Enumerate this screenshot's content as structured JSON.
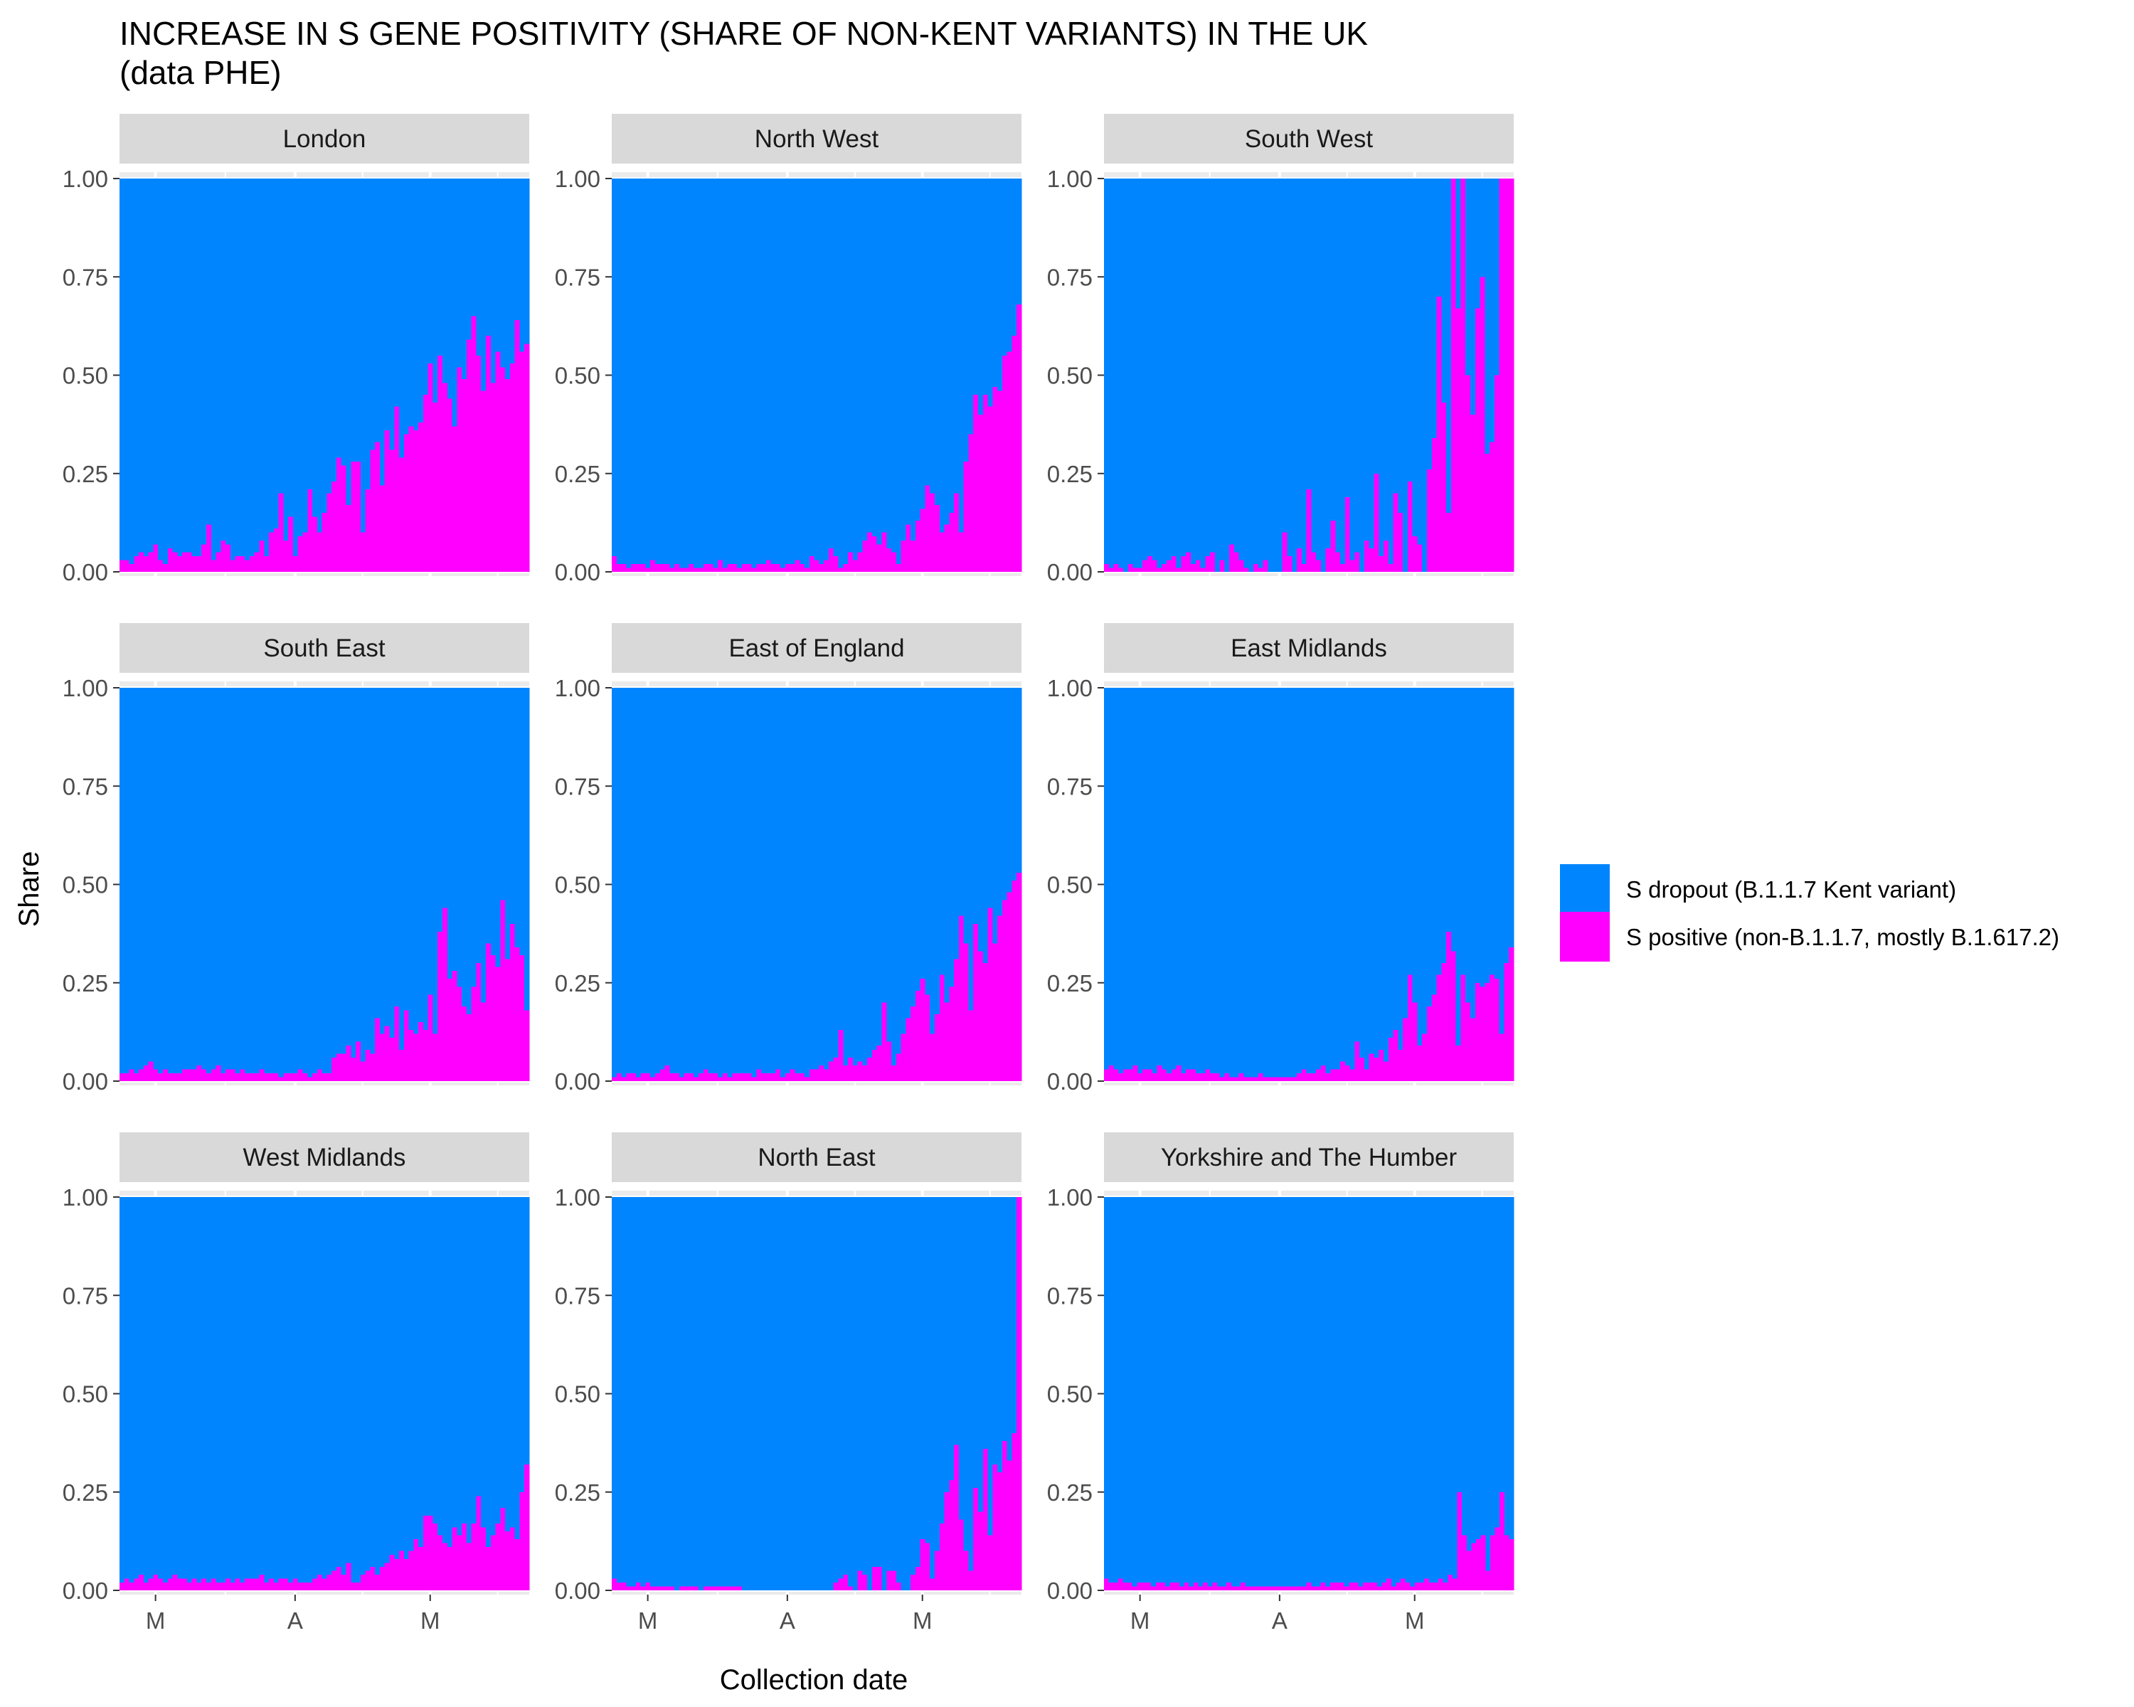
{
  "chart_data": {
    "type": "bar",
    "stacked": true,
    "facet": "wrap",
    "title": "INCREASE IN S GENE POSITIVITY (SHARE OF NON-KENT VARIANTS) IN THE UK",
    "subtitle": "(data PHE)",
    "xlabel": "Collection date",
    "ylabel": "Share",
    "ylim": [
      0,
      1
    ],
    "y_ticks": [
      "0.00",
      "0.25",
      "0.50",
      "0.75",
      "1.00"
    ],
    "x_tick_labels": [
      "M",
      "A",
      "M"
    ],
    "x_tick_dates": [
      "2021-03-01",
      "2021-04-01",
      "2021-05-01"
    ],
    "x_range": [
      "2021-02-21",
      "2021-05-23"
    ],
    "grid": true,
    "legend_position": "right",
    "legend": [
      {
        "label": "S dropout (B.1.1.7 Kent variant)",
        "color": "#0085FF"
      },
      {
        "label": "S positive (non-B.1.1.7, mostly B.1.617.2)",
        "color": "#FF00FF"
      }
    ],
    "panels": [
      {
        "name": "London",
        "s_positive_share": [
          0.03,
          0.03,
          0.02,
          0.04,
          0.05,
          0.04,
          0.05,
          0.07,
          0.03,
          0.02,
          0.06,
          0.05,
          0.04,
          0.05,
          0.05,
          0.04,
          0.04,
          0.07,
          0.12,
          0.03,
          0.05,
          0.08,
          0.07,
          0.03,
          0.04,
          0.04,
          0.03,
          0.04,
          0.05,
          0.08,
          0.04,
          0.1,
          0.11,
          0.2,
          0.08,
          0.14,
          0.04,
          0.09,
          0.1,
          0.21,
          0.14,
          0.1,
          0.15,
          0.2,
          0.23,
          0.29,
          0.27,
          0.17,
          0.28,
          0.28,
          0.1,
          0.21,
          0.31,
          0.33,
          0.22,
          0.36,
          0.31,
          0.42,
          0.29,
          0.35,
          0.37,
          0.36,
          0.38,
          0.45,
          0.53,
          0.43,
          0.55,
          0.48,
          0.44,
          0.37,
          0.52,
          0.49,
          0.59,
          0.65,
          0.55,
          0.46,
          0.6,
          0.48,
          0.56,
          0.52,
          0.49,
          0.53,
          0.64,
          0.56,
          0.58
        ]
      },
      {
        "name": "North West",
        "s_positive_share": [
          0.04,
          0.02,
          0.02,
          0.01,
          0.02,
          0.02,
          0.02,
          0.01,
          0.03,
          0.02,
          0.02,
          0.02,
          0.01,
          0.02,
          0.01,
          0.01,
          0.02,
          0.01,
          0.01,
          0.02,
          0.02,
          0.01,
          0.03,
          0.01,
          0.02,
          0.02,
          0.01,
          0.02,
          0.02,
          0.01,
          0.02,
          0.02,
          0.03,
          0.02,
          0.02,
          0.01,
          0.02,
          0.02,
          0.03,
          0.02,
          0.01,
          0.04,
          0.03,
          0.02,
          0.03,
          0.06,
          0.04,
          0.01,
          0.02,
          0.05,
          0.03,
          0.05,
          0.08,
          0.1,
          0.09,
          0.07,
          0.1,
          0.06,
          0.05,
          0.02,
          0.08,
          0.12,
          0.08,
          0.13,
          0.16,
          0.22,
          0.2,
          0.17,
          0.1,
          0.12,
          0.15,
          0.2,
          0.1,
          0.28,
          0.35,
          0.45,
          0.4,
          0.45,
          0.42,
          0.47,
          0.46,
          0.55,
          0.56,
          0.6,
          0.68
        ]
      },
      {
        "name": "South West",
        "s_positive_share": [
          0.02,
          0.01,
          0.02,
          0.01,
          0.0,
          0.02,
          0.01,
          0.01,
          0.03,
          0.04,
          0.03,
          0.01,
          0.02,
          0.03,
          0.04,
          0.01,
          0.04,
          0.05,
          0.02,
          0.03,
          0.01,
          0.04,
          0.05,
          0.0,
          0.03,
          0.0,
          0.07,
          0.05,
          0.03,
          0.01,
          0.0,
          0.02,
          0.01,
          0.03,
          0.0,
          0.0,
          0.0,
          0.1,
          0.04,
          0.0,
          0.06,
          0.02,
          0.21,
          0.05,
          0.03,
          0.0,
          0.06,
          0.13,
          0.05,
          0.02,
          0.19,
          0.03,
          0.05,
          0.0,
          0.08,
          0.06,
          0.25,
          0.04,
          0.08,
          0.02,
          0.2,
          0.15,
          0.0,
          0.23,
          0.09,
          0.07,
          0.0,
          0.26,
          0.34,
          0.7,
          0.43,
          0.15,
          1.0,
          0.67,
          1.0,
          0.5,
          0.4,
          0.67,
          0.75,
          0.3,
          0.33,
          0.5,
          1.0,
          1.0,
          1.0
        ]
      },
      {
        "name": "South East",
        "s_positive_share": [
          0.02,
          0.02,
          0.03,
          0.02,
          0.03,
          0.04,
          0.05,
          0.03,
          0.02,
          0.03,
          0.02,
          0.02,
          0.02,
          0.03,
          0.03,
          0.03,
          0.04,
          0.03,
          0.02,
          0.03,
          0.04,
          0.02,
          0.03,
          0.03,
          0.02,
          0.03,
          0.02,
          0.02,
          0.02,
          0.03,
          0.02,
          0.02,
          0.02,
          0.01,
          0.02,
          0.02,
          0.02,
          0.03,
          0.02,
          0.01,
          0.02,
          0.03,
          0.02,
          0.02,
          0.06,
          0.07,
          0.07,
          0.09,
          0.06,
          0.1,
          0.05,
          0.08,
          0.07,
          0.16,
          0.12,
          0.14,
          0.11,
          0.19,
          0.08,
          0.18,
          0.13,
          0.12,
          0.15,
          0.13,
          0.22,
          0.12,
          0.38,
          0.44,
          0.26,
          0.28,
          0.24,
          0.19,
          0.17,
          0.24,
          0.3,
          0.2,
          0.35,
          0.32,
          0.29,
          0.46,
          0.31,
          0.4,
          0.34,
          0.32,
          0.18
        ]
      },
      {
        "name": "East of England",
        "s_positive_share": [
          0.01,
          0.02,
          0.01,
          0.02,
          0.02,
          0.01,
          0.02,
          0.02,
          0.01,
          0.02,
          0.03,
          0.04,
          0.02,
          0.02,
          0.01,
          0.02,
          0.02,
          0.01,
          0.02,
          0.03,
          0.02,
          0.02,
          0.01,
          0.02,
          0.01,
          0.02,
          0.02,
          0.02,
          0.02,
          0.01,
          0.03,
          0.02,
          0.02,
          0.02,
          0.03,
          0.01,
          0.02,
          0.03,
          0.02,
          0.02,
          0.01,
          0.03,
          0.03,
          0.04,
          0.03,
          0.05,
          0.06,
          0.13,
          0.04,
          0.06,
          0.04,
          0.05,
          0.04,
          0.06,
          0.08,
          0.09,
          0.2,
          0.1,
          0.04,
          0.07,
          0.12,
          0.16,
          0.19,
          0.23,
          0.26,
          0.22,
          0.12,
          0.17,
          0.27,
          0.2,
          0.24,
          0.31,
          0.42,
          0.35,
          0.18,
          0.4,
          0.33,
          0.3,
          0.44,
          0.35,
          0.42,
          0.46,
          0.48,
          0.51,
          0.53
        ]
      },
      {
        "name": "East Midlands",
        "s_positive_share": [
          0.03,
          0.04,
          0.03,
          0.02,
          0.03,
          0.03,
          0.04,
          0.02,
          0.03,
          0.03,
          0.02,
          0.04,
          0.03,
          0.02,
          0.03,
          0.04,
          0.02,
          0.03,
          0.03,
          0.02,
          0.02,
          0.03,
          0.02,
          0.02,
          0.01,
          0.02,
          0.01,
          0.01,
          0.02,
          0.01,
          0.01,
          0.01,
          0.02,
          0.01,
          0.01,
          0.01,
          0.01,
          0.01,
          0.01,
          0.01,
          0.02,
          0.03,
          0.02,
          0.02,
          0.03,
          0.04,
          0.02,
          0.03,
          0.03,
          0.05,
          0.04,
          0.03,
          0.1,
          0.06,
          0.03,
          0.07,
          0.06,
          0.08,
          0.05,
          0.11,
          0.13,
          0.08,
          0.16,
          0.27,
          0.2,
          0.09,
          0.12,
          0.19,
          0.22,
          0.27,
          0.3,
          0.38,
          0.33,
          0.09,
          0.27,
          0.2,
          0.16,
          0.25,
          0.24,
          0.25,
          0.27,
          0.26,
          0.12,
          0.3,
          0.34
        ]
      },
      {
        "name": "West Midlands",
        "s_positive_share": [
          0.02,
          0.03,
          0.02,
          0.03,
          0.04,
          0.02,
          0.03,
          0.04,
          0.03,
          0.02,
          0.03,
          0.04,
          0.03,
          0.03,
          0.02,
          0.03,
          0.02,
          0.03,
          0.02,
          0.03,
          0.02,
          0.02,
          0.03,
          0.02,
          0.03,
          0.02,
          0.03,
          0.03,
          0.03,
          0.04,
          0.02,
          0.03,
          0.02,
          0.03,
          0.03,
          0.02,
          0.03,
          0.02,
          0.02,
          0.02,
          0.03,
          0.04,
          0.03,
          0.04,
          0.05,
          0.06,
          0.04,
          0.07,
          0.02,
          0.02,
          0.04,
          0.05,
          0.06,
          0.04,
          0.06,
          0.07,
          0.09,
          0.08,
          0.1,
          0.08,
          0.1,
          0.13,
          0.11,
          0.19,
          0.19,
          0.17,
          0.14,
          0.12,
          0.11,
          0.16,
          0.14,
          0.17,
          0.12,
          0.17,
          0.24,
          0.16,
          0.11,
          0.14,
          0.17,
          0.21,
          0.15,
          0.16,
          0.13,
          0.25,
          0.32
        ]
      },
      {
        "name": "North East",
        "s_positive_share": [
          0.03,
          0.02,
          0.02,
          0.01,
          0.01,
          0.02,
          0.01,
          0.02,
          0.01,
          0.01,
          0.01,
          0.01,
          0.01,
          0.0,
          0.01,
          0.01,
          0.01,
          0.01,
          0.0,
          0.01,
          0.01,
          0.01,
          0.01,
          0.01,
          0.01,
          0.01,
          0.01,
          0.0,
          0.0,
          0.0,
          0.0,
          0.0,
          0.0,
          0.0,
          0.0,
          0.0,
          0.0,
          0.0,
          0.0,
          0.0,
          0.0,
          0.0,
          0.0,
          0.0,
          0.0,
          0.0,
          0.02,
          0.03,
          0.04,
          0.01,
          0.0,
          0.05,
          0.04,
          0.0,
          0.06,
          0.06,
          0.0,
          0.05,
          0.05,
          0.02,
          0.0,
          0.0,
          0.04,
          0.06,
          0.13,
          0.12,
          0.03,
          0.1,
          0.17,
          0.25,
          0.28,
          0.37,
          0.18,
          0.1,
          0.05,
          0.26,
          0.2,
          0.36,
          0.14,
          0.32,
          0.3,
          0.38,
          0.33,
          0.4,
          1.0
        ]
      },
      {
        "name": "Yorkshire and The Humber",
        "s_positive_share": [
          0.03,
          0.02,
          0.02,
          0.03,
          0.02,
          0.02,
          0.01,
          0.02,
          0.02,
          0.02,
          0.01,
          0.02,
          0.02,
          0.01,
          0.02,
          0.02,
          0.01,
          0.02,
          0.01,
          0.02,
          0.01,
          0.02,
          0.01,
          0.02,
          0.01,
          0.01,
          0.02,
          0.01,
          0.01,
          0.02,
          0.01,
          0.01,
          0.01,
          0.01,
          0.01,
          0.01,
          0.01,
          0.01,
          0.01,
          0.01,
          0.01,
          0.01,
          0.01,
          0.02,
          0.01,
          0.01,
          0.02,
          0.01,
          0.02,
          0.02,
          0.02,
          0.01,
          0.02,
          0.02,
          0.01,
          0.02,
          0.02,
          0.02,
          0.01,
          0.02,
          0.03,
          0.01,
          0.02,
          0.03,
          0.02,
          0.01,
          0.02,
          0.02,
          0.03,
          0.02,
          0.02,
          0.03,
          0.02,
          0.04,
          0.03,
          0.25,
          0.14,
          0.1,
          0.12,
          0.13,
          0.14,
          0.05,
          0.14,
          0.16,
          0.25,
          0.14,
          0.13
        ]
      }
    ]
  }
}
